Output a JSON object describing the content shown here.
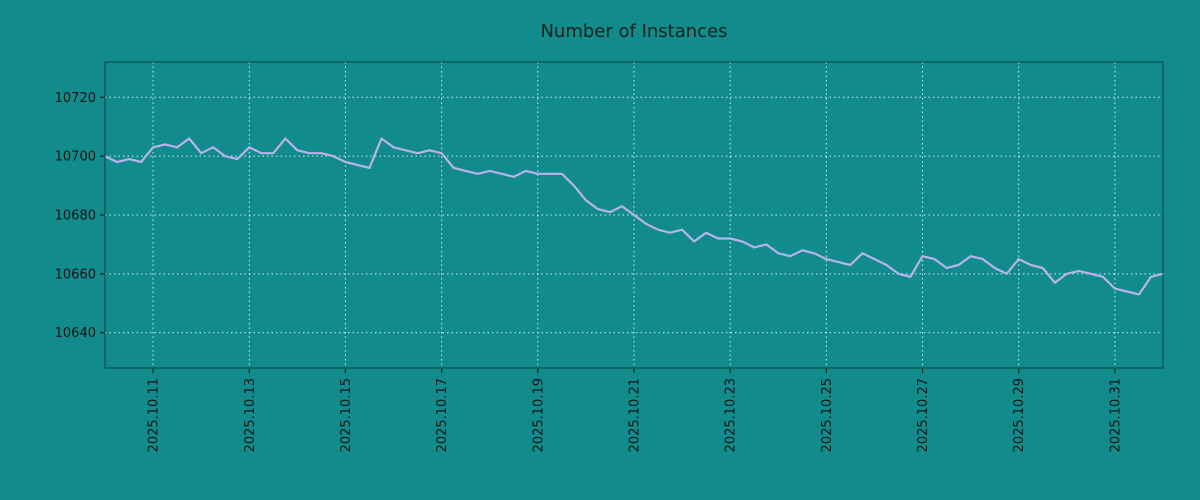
{
  "title": "Number of Instances",
  "colors": {
    "background": "#118b8b",
    "line": "#b9b3ec",
    "grid": "#e8fbfb",
    "text": "#141414",
    "border": "#0a4040"
  },
  "chart_data": {
    "type": "line",
    "title": "Number of Instances",
    "xlabel": "",
    "ylabel": "",
    "legend": "none",
    "grid": "dashed-white",
    "x_start_day": 10.0,
    "x_end_day": 32.0,
    "x_step_days": 0.25,
    "x_tick_days": [
      11,
      13,
      15,
      17,
      19,
      21,
      23,
      25,
      27,
      29,
      31
    ],
    "x_tick_labels": [
      "2025.10.11",
      "2025.10.13",
      "2025.10.15",
      "2025.10.17",
      "2025.10.19",
      "2025.10.21",
      "2025.10.23",
      "2025.10.25",
      "2025.10.27",
      "2025.10.29",
      "2025.10.31"
    ],
    "y_ticks": [
      10640,
      10660,
      10680,
      10700,
      10720
    ],
    "y_tick_labels": [
      "10640",
      "10660",
      "10680",
      "10700",
      "10720"
    ],
    "ylim": [
      10628,
      10732
    ],
    "values": [
      10700,
      10698,
      10699,
      10698,
      10703,
      10704,
      10703,
      10706,
      10701,
      10703,
      10700,
      10699,
      10703,
      10701,
      10701,
      10706,
      10702,
      10701,
      10701,
      10700,
      10698,
      10697,
      10696,
      10706,
      10703,
      10702,
      10701,
      10702,
      10701,
      10696,
      10695,
      10694,
      10695,
      10694,
      10693,
      10695,
      10694,
      10694,
      10694,
      10690,
      10685,
      10682,
      10681,
      10683,
      10680,
      10677,
      10675,
      10674,
      10675,
      10671,
      10674,
      10672,
      10672,
      10671,
      10669,
      10670,
      10667,
      10666,
      10668,
      10667,
      10665,
      10664,
      10663,
      10667,
      10665,
      10663,
      10660,
      10659,
      10666,
      10665,
      10662,
      10663,
      10666,
      10665,
      10662,
      10660,
      10665,
      10663,
      10662,
      10657,
      10660,
      10661,
      10660,
      10659,
      10655,
      10654,
      10653,
      10659,
      10660
    ]
  }
}
